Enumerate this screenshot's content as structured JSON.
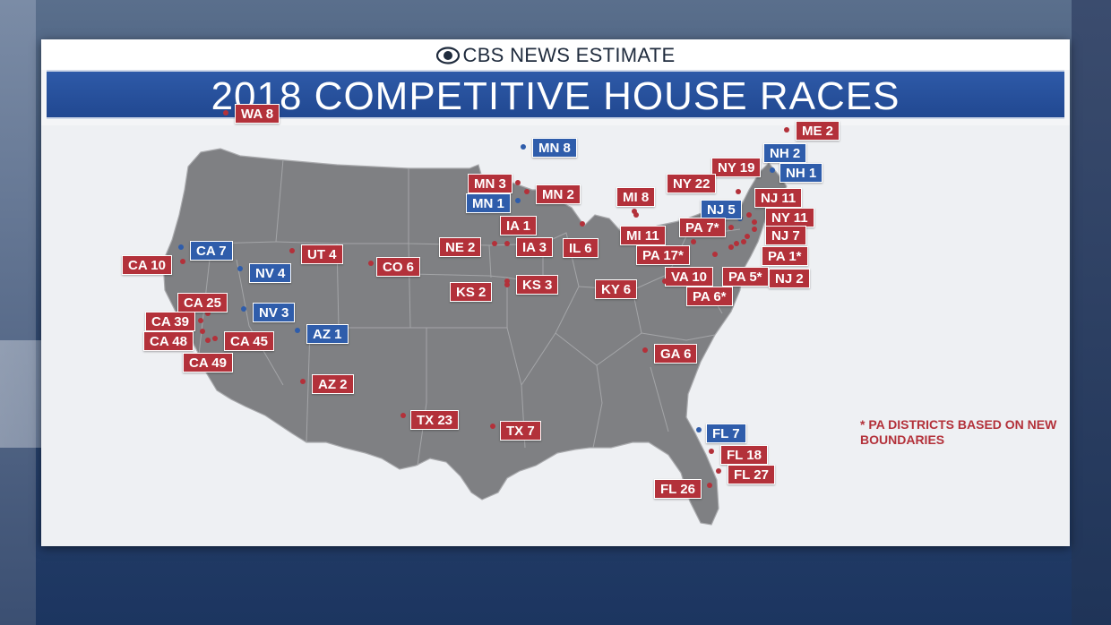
{
  "header": {
    "network": "CBS NEWS ESTIMATE",
    "title": "2018 COMPETITIVE HOUSE RACES"
  },
  "colors": {
    "republican": "#b3313a",
    "democrat": "#2f5dab",
    "title_bar": "#214891"
  },
  "footnote": "* PA DISTRICTS BASED ON NEW BOUNDARIES",
  "races": [
    {
      "label": "WA 8",
      "party": "republican"
    },
    {
      "label": "ME 2",
      "party": "republican"
    },
    {
      "label": "MN 8",
      "party": "democrat"
    },
    {
      "label": "NH 2",
      "party": "democrat"
    },
    {
      "label": "NH 1",
      "party": "democrat"
    },
    {
      "label": "NY 19",
      "party": "republican"
    },
    {
      "label": "MN 3",
      "party": "republican"
    },
    {
      "label": "NY 22",
      "party": "republican"
    },
    {
      "label": "MN 1",
      "party": "democrat"
    },
    {
      "label": "MN 2",
      "party": "republican"
    },
    {
      "label": "NJ 11",
      "party": "republican"
    },
    {
      "label": "MI 8",
      "party": "republican"
    },
    {
      "label": "NJ 5",
      "party": "democrat"
    },
    {
      "label": "NY 11",
      "party": "republican"
    },
    {
      "label": "IA 1",
      "party": "republican"
    },
    {
      "label": "PA 7*",
      "party": "republican"
    },
    {
      "label": "NJ 7",
      "party": "republican"
    },
    {
      "label": "MI 11",
      "party": "republican"
    },
    {
      "label": "CA 7",
      "party": "democrat"
    },
    {
      "label": "UT 4",
      "party": "republican"
    },
    {
      "label": "NE 2",
      "party": "republican"
    },
    {
      "label": "IA 3",
      "party": "republican"
    },
    {
      "label": "IL 6",
      "party": "republican"
    },
    {
      "label": "PA 17*",
      "party": "republican"
    },
    {
      "label": "PA 1*",
      "party": "republican"
    },
    {
      "label": "CA 10",
      "party": "republican"
    },
    {
      "label": "CO 6",
      "party": "republican"
    },
    {
      "label": "NV 4",
      "party": "democrat"
    },
    {
      "label": "VA 10",
      "party": "republican"
    },
    {
      "label": "PA 5*",
      "party": "republican"
    },
    {
      "label": "NJ 2",
      "party": "republican"
    },
    {
      "label": "KS 2",
      "party": "republican"
    },
    {
      "label": "KS 3",
      "party": "republican"
    },
    {
      "label": "KY 6",
      "party": "republican"
    },
    {
      "label": "PA 6*",
      "party": "republican"
    },
    {
      "label": "CA 25",
      "party": "republican"
    },
    {
      "label": "NV 3",
      "party": "democrat"
    },
    {
      "label": "CA 39",
      "party": "republican"
    },
    {
      "label": "AZ 1",
      "party": "democrat"
    },
    {
      "label": "CA 48",
      "party": "republican"
    },
    {
      "label": "CA 45",
      "party": "republican"
    },
    {
      "label": "GA 6",
      "party": "republican"
    },
    {
      "label": "CA 49",
      "party": "republican"
    },
    {
      "label": "AZ 2",
      "party": "republican"
    },
    {
      "label": "TX 23",
      "party": "republican"
    },
    {
      "label": "TX 7",
      "party": "republican"
    },
    {
      "label": "FL 7",
      "party": "democrat"
    },
    {
      "label": "FL 18",
      "party": "republican"
    },
    {
      "label": "FL 27",
      "party": "republican"
    },
    {
      "label": "FL 26",
      "party": "republican"
    }
  ]
}
